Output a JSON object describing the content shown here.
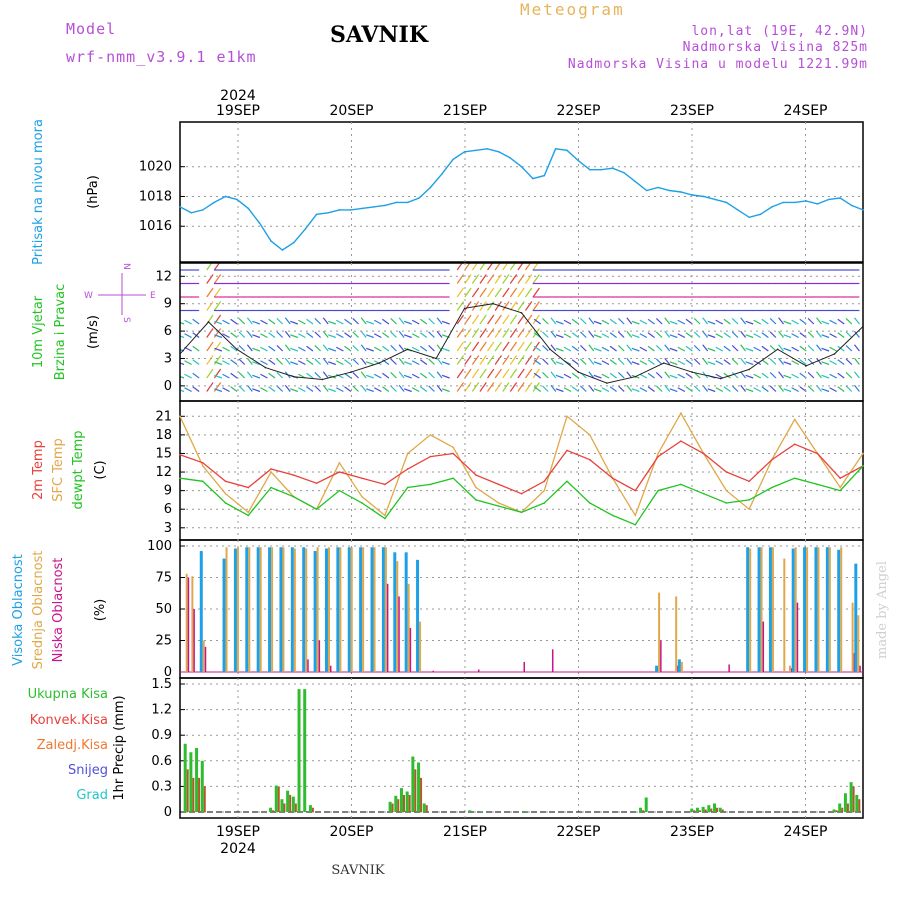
{
  "header": {
    "model_label": "Model",
    "model_name": "wrf-nmm_v3.9.1 e1km",
    "title": "SAVNIK",
    "meteogram": "Meteogram",
    "lonlat": "lon,lat (19E, 42.9N)",
    "elevation": "Nadmorska Visina 825m",
    "model_elevation": "Nadmorska Visina u modelu 1221.99m",
    "year_top": "2024",
    "year_bottom": "2024",
    "footer": "SAVNIK",
    "watermark": "made by Angel"
  },
  "axis": {
    "days": [
      "19SEP",
      "20SEP",
      "21SEP",
      "22SEP",
      "23SEP",
      "24SEP"
    ]
  },
  "panels": {
    "pressure": {
      "label1": "Pritisak na nivou mora",
      "label2": "(hPa)"
    },
    "wind": {
      "label1": "10m Vjetar",
      "label2": "Brzina i Pravac",
      "label3": "(m/s)",
      "compass_w": "W",
      "compass_e": "E",
      "compass_n": "N",
      "compass_s": "S"
    },
    "temp": {
      "label1": "2m Temp",
      "label2": "SFC Temp",
      "label3": "dewpt Temp",
      "label4": "(C)"
    },
    "cloud": {
      "label1": "Visoka Oblacnost",
      "label2": "Srednja Oblacnost",
      "label3": "Niska Oblacnost",
      "label4": "(%)"
    },
    "precip": {
      "leg1": "Ukupna Kisa",
      "leg2": "Konvek.Kisa",
      "leg3": "Zaledj.Kisa",
      "leg4": "Snijeg",
      "leg5": "Grad",
      "ylabel": "1hr Precip (mm)"
    }
  },
  "colors": {
    "pressure": "#1ea0e6",
    "t2m": "#e8413c",
    "tsfc": "#e0a84a",
    "dewpt": "#22c322",
    "high_cloud": "#1ea0e6",
    "mid_cloud": "#e0a84a",
    "low_cloud": "#c8148c",
    "total_rain": "#2fbd2f",
    "conv_rain": "#e8413c",
    "freezing_rain": "#f07830",
    "snow": "#5050dc",
    "hail": "#20c8c8"
  },
  "chart_data": [
    {
      "type": "line",
      "title": "",
      "ylabel": "(hPa)",
      "ylim": [
        1014.0,
        1022.6
      ],
      "yticks": [
        "1016",
        "1018",
        "1020"
      ],
      "xlim": [
        0,
        6
      ],
      "x": [
        0,
        0.1,
        0.2,
        0.3,
        0.4,
        0.5,
        0.6,
        0.7,
        0.8,
        0.9,
        1.0,
        1.1,
        1.2,
        1.3,
        1.4,
        1.5,
        1.6,
        1.7,
        1.8,
        1.9,
        2.0,
        2.1,
        2.2,
        2.3,
        2.4,
        2.5,
        2.6,
        2.7,
        2.8,
        2.9,
        3.0,
        3.1,
        3.2,
        3.3,
        3.4,
        3.5,
        3.6,
        3.7,
        3.8,
        3.9,
        4.0,
        4.1,
        4.2,
        4.3,
        4.4,
        4.5,
        4.6,
        4.7,
        4.8,
        4.9,
        5.0,
        5.1,
        5.2,
        5.3,
        5.4,
        5.5,
        5.6,
        5.7,
        5.8,
        5.9,
        6.0
      ],
      "series": [
        {
          "name": "Pritisak na nivou mora",
          "values": [
            1017.3,
            1016.9,
            1017.1,
            1017.6,
            1018.0,
            1017.8,
            1017.2,
            1016.2,
            1015.0,
            1014.4,
            1014.9,
            1015.8,
            1016.8,
            1016.9,
            1017.1,
            1017.1,
            1017.2,
            1017.3,
            1017.4,
            1017.6,
            1017.6,
            1017.9,
            1018.6,
            1019.5,
            1020.5,
            1021.0,
            1021.1,
            1021.2,
            1021.0,
            1020.6,
            1020.0,
            1019.2,
            1019.4,
            1021.2,
            1021.1,
            1020.4,
            1019.8,
            1019.8,
            1019.9,
            1019.6,
            1019.0,
            1018.4,
            1018.6,
            1018.4,
            1018.3,
            1018.1,
            1018.0,
            1017.8,
            1017.6,
            1017.1,
            1016.6,
            1016.8,
            1017.3,
            1017.6,
            1017.6,
            1017.7,
            1017.5,
            1017.8,
            1017.9,
            1017.4,
            1017.1
          ]
        }
      ]
    },
    {
      "type": "line",
      "title": "",
      "ylabel": "(m/s)",
      "ylim": [
        -1.0,
        12.8
      ],
      "yticks": [
        "0",
        "3",
        "6",
        "9",
        "12"
      ],
      "xlim": [
        0,
        6
      ],
      "x": [
        0,
        0.25,
        0.5,
        0.75,
        1.0,
        1.25,
        1.5,
        1.75,
        2.0,
        2.25,
        2.5,
        2.75,
        3.0,
        3.25,
        3.5,
        3.75,
        4.0,
        4.25,
        4.5,
        4.75,
        5.0,
        5.25,
        5.5,
        5.75,
        6.0
      ],
      "series": [
        {
          "name": "10m Vjetar",
          "values": [
            3.5,
            7.0,
            4.0,
            2.0,
            1.0,
            0.7,
            1.5,
            2.5,
            4.0,
            3.0,
            8.5,
            9.0,
            8.0,
            4.0,
            1.5,
            0.3,
            1.0,
            2.5,
            1.5,
            0.8,
            1.8,
            4.0,
            2.2,
            3.5,
            6.5
          ]
        }
      ]
    },
    {
      "type": "line",
      "title": "",
      "ylabel": "(C)",
      "ylim": [
        2.0,
        22.5
      ],
      "yticks": [
        "3",
        "6",
        "9",
        "12",
        "15",
        "18",
        "21"
      ],
      "xlim": [
        0,
        6
      ],
      "x": [
        0,
        0.2,
        0.4,
        0.6,
        0.8,
        1.0,
        1.2,
        1.4,
        1.6,
        1.8,
        2.0,
        2.2,
        2.4,
        2.6,
        2.8,
        3.0,
        3.2,
        3.4,
        3.6,
        3.8,
        4.0,
        4.2,
        4.4,
        4.6,
        4.8,
        5.0,
        5.2,
        5.4,
        5.6,
        5.8,
        6.0
      ],
      "series": [
        {
          "name": "2m Temp",
          "values": [
            14.8,
            13.5,
            10.5,
            9.5,
            12.5,
            11.5,
            10.2,
            12.0,
            11.0,
            10.0,
            12.5,
            14.5,
            15.0,
            11.5,
            10.0,
            8.5,
            10.5,
            15.5,
            14.0,
            11.0,
            9.0,
            14.5,
            17.0,
            15.0,
            12.0,
            10.5,
            14.0,
            16.5,
            15.0,
            11.0,
            13.0
          ]
        },
        {
          "name": "SFC Temp",
          "values": [
            21.0,
            13.0,
            8.5,
            5.5,
            12.0,
            8.0,
            6.0,
            13.5,
            8.0,
            5.0,
            15.0,
            18.0,
            16.0,
            9.5,
            7.0,
            5.5,
            9.0,
            21.0,
            18.0,
            11.0,
            5.0,
            15.0,
            21.5,
            15.0,
            9.0,
            6.0,
            14.0,
            20.5,
            15.0,
            9.5,
            15.0
          ]
        },
        {
          "name": "dewpt Temp",
          "values": [
            11.0,
            10.5,
            7.0,
            5.0,
            9.5,
            8.0,
            6.0,
            9.0,
            7.0,
            4.5,
            9.5,
            10.0,
            11.0,
            7.5,
            6.5,
            5.5,
            7.0,
            10.5,
            7.0,
            5.0,
            3.5,
            9.0,
            10.0,
            8.5,
            7.0,
            7.5,
            9.5,
            11.0,
            10.0,
            9.0,
            13.0
          ]
        }
      ]
    },
    {
      "type": "bar",
      "title": "",
      "ylabel": "(%)",
      "ylim": [
        0,
        100
      ],
      "yticks": [
        "0",
        "25",
        "50",
        "75",
        "100"
      ],
      "xlim": [
        0,
        6
      ],
      "x": [
        0.05,
        0.1,
        0.2,
        0.3,
        0.4,
        0.5,
        0.6,
        0.7,
        0.8,
        0.9,
        1.0,
        1.1,
        1.2,
        1.3,
        1.4,
        1.5,
        1.6,
        1.7,
        1.8,
        1.9,
        2.0,
        2.1,
        2.2,
        2.6,
        3.0,
        3.25,
        4.2,
        4.35,
        4.4,
        4.8,
        5.0,
        5.1,
        5.2,
        5.3,
        5.35,
        5.4,
        5.5,
        5.6,
        5.7,
        5.8,
        5.9,
        5.95
      ],
      "series": [
        {
          "name": "Visoka Oblacnost",
          "values": [
            0,
            0,
            96,
            0,
            90,
            98,
            99,
            99,
            99,
            99,
            99,
            99,
            96,
            98,
            99,
            99,
            99,
            99,
            99,
            95,
            95,
            89,
            0,
            0,
            0,
            0,
            5,
            0,
            10,
            0,
            99,
            99,
            99,
            0,
            0,
            98,
            99,
            99,
            99,
            97,
            0,
            86
          ]
        },
        {
          "name": "Srednja Oblacnost",
          "values": [
            78,
            76,
            25,
            0,
            99,
            99,
            99,
            99,
            99,
            99,
            98,
            98,
            99,
            99,
            99,
            99,
            99,
            99,
            99,
            88,
            70,
            40,
            0,
            0,
            0,
            0,
            63,
            60,
            8,
            0,
            98,
            99,
            99,
            90,
            5,
            99,
            99,
            99,
            99,
            99,
            55,
            45
          ]
        },
        {
          "name": "Niska Oblacnost",
          "values": [
            75,
            50,
            20,
            0,
            0,
            0,
            0,
            0,
            0,
            0,
            0,
            10,
            25,
            5,
            0,
            0,
            0,
            0,
            70,
            60,
            35,
            0,
            1,
            2,
            8,
            18,
            25,
            5,
            0,
            6,
            0,
            40,
            0,
            0,
            3,
            55,
            0,
            0,
            0,
            0,
            15,
            5
          ]
        }
      ]
    },
    {
      "type": "bar",
      "title": "",
      "ylabel": "1hr Precip (mm)",
      "ylim": [
        0,
        1.5
      ],
      "yticks": [
        "0",
        "0.3",
        "0.6",
        "0.9",
        "1.2",
        "1.5"
      ],
      "xlim": [
        0,
        6
      ],
      "x": [
        0.05,
        0.1,
        0.15,
        0.2,
        0.8,
        0.85,
        0.9,
        0.95,
        1.0,
        1.05,
        1.1,
        1.15,
        1.2,
        1.85,
        1.9,
        1.95,
        2.0,
        2.05,
        2.1,
        2.15,
        2.55,
        2.65,
        3.05,
        4.05,
        4.1,
        4.5,
        4.55,
        4.6,
        4.65,
        4.7,
        4.75,
        5.75,
        5.8,
        5.85,
        5.9,
        5.95
      ],
      "series": [
        {
          "name": "Ukupna Kisa",
          "values": [
            0.8,
            0.7,
            0.75,
            0.6,
            0.05,
            0.31,
            0.15,
            0.25,
            0.18,
            1.44,
            1.44,
            0.08,
            0.0,
            0.12,
            0.19,
            0.28,
            0.24,
            0.65,
            0.58,
            0.1,
            0.02,
            0.01,
            0.01,
            0.05,
            0.17,
            0.04,
            0.05,
            0.06,
            0.08,
            0.1,
            0.05,
            0.03,
            0.1,
            0.22,
            0.35,
            0.2
          ]
        },
        {
          "name": "Konvek.Kisa",
          "values": [
            0.5,
            0.4,
            0.4,
            0.3,
            0.02,
            0.3,
            0.1,
            0.2,
            0.1,
            0.0,
            0.0,
            0.05,
            0.0,
            0.1,
            0.15,
            0.2,
            0.2,
            0.5,
            0.4,
            0.08,
            0.0,
            0.0,
            0.0,
            0.02,
            0.0,
            0.02,
            0.02,
            0.03,
            0.04,
            0.05,
            0.03,
            0.02,
            0.05,
            0.1,
            0.3,
            0.15
          ]
        }
      ]
    }
  ]
}
